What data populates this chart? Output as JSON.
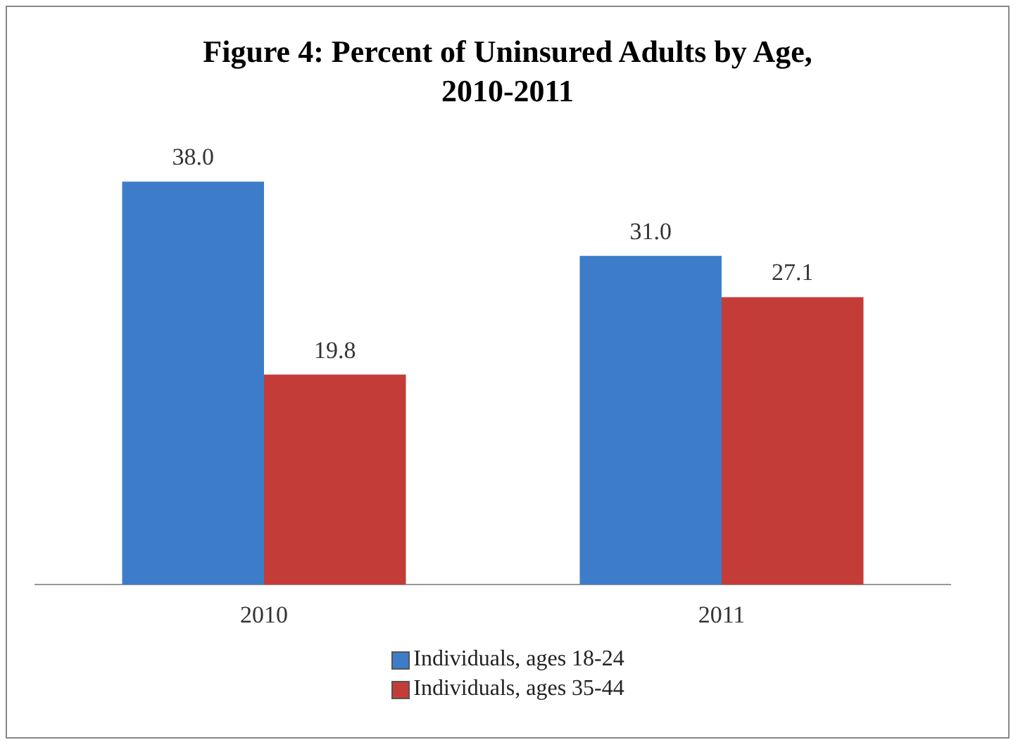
{
  "chart_data": {
    "type": "bar",
    "title": "Figure 4: Percent of Uninsured Adults by Age, 2010-2011",
    "categories": [
      "2010",
      "2011"
    ],
    "series": [
      {
        "name": "Individuals, ages 18-24",
        "color": "#3d7cc9",
        "values": [
          38.0,
          31.0
        ],
        "value_labels": [
          "38.0",
          "31.0"
        ]
      },
      {
        "name": "Individuals, ages 35-44",
        "color": "#c43c38",
        "values": [
          19.8,
          27.1
        ],
        "value_labels": [
          "19.8",
          "27.1"
        ]
      }
    ],
    "legend": "bottom",
    "grid": false
  }
}
